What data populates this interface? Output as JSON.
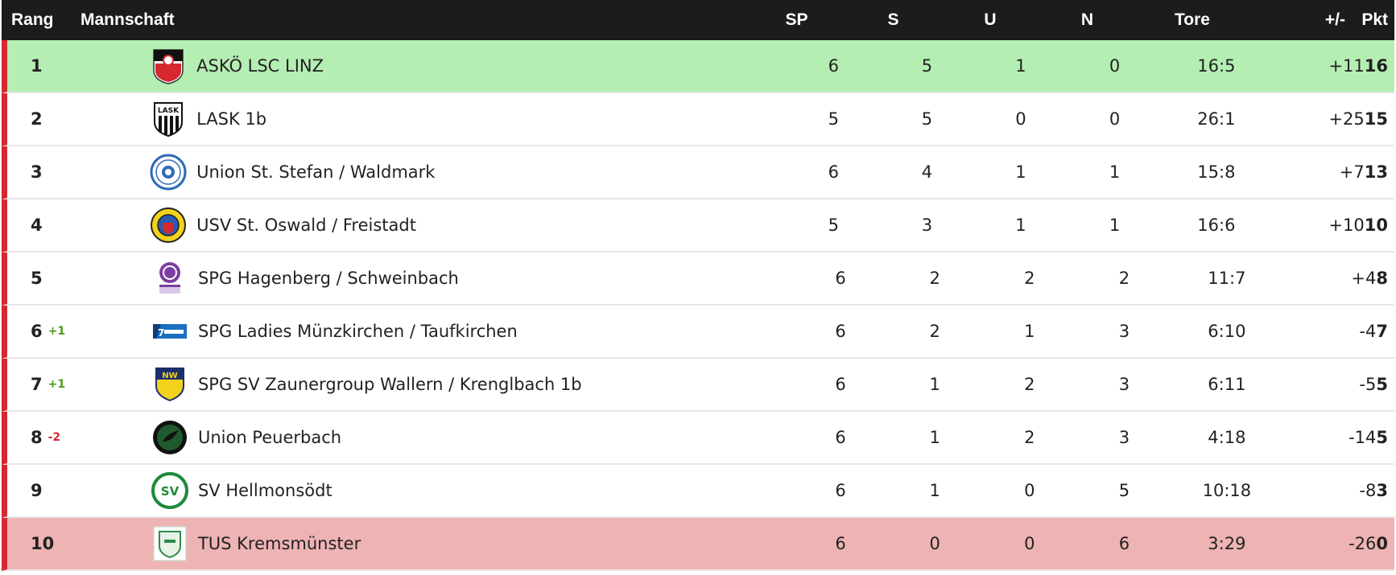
{
  "header": {
    "rank": "Rang",
    "team": "Mannschaft",
    "sp": "SP",
    "s": "S",
    "u": "U",
    "n": "N",
    "tore": "Tore",
    "diff": "+/-",
    "pkt": "Pkt"
  },
  "colors": {
    "header_bg": "#1c1c1c",
    "promotion_row": "#b5eeb3",
    "relegation_row": "#eeb3b3",
    "left_accent": "#d6282f",
    "change_up": "#4c9a1a",
    "change_down": "#d6282f"
  },
  "rows": [
    {
      "rank": "1",
      "change": "",
      "team": "ASKÖ LSC LINZ",
      "logo": "asko-lsc-linz-logo",
      "sp": "6",
      "s": "5",
      "u": "1",
      "n": "0",
      "tore": "16:5",
      "diff": "+11",
      "pkt": "16"
    },
    {
      "rank": "2",
      "change": "",
      "team": "LASK 1b",
      "logo": "lask-logo",
      "sp": "5",
      "s": "5",
      "u": "0",
      "n": "0",
      "tore": "26:1",
      "diff": "+25",
      "pkt": "15"
    },
    {
      "rank": "3",
      "change": "",
      "team": "Union St. Stefan / Waldmark",
      "logo": "union-st-stefan-logo",
      "sp": "6",
      "s": "4",
      "u": "1",
      "n": "1",
      "tore": "15:8",
      "diff": "+7",
      "pkt": "13"
    },
    {
      "rank": "4",
      "change": "",
      "team": "USV St. Oswald / Freistadt",
      "logo": "usv-st-oswald-logo",
      "sp": "5",
      "s": "3",
      "u": "1",
      "n": "1",
      "tore": "16:6",
      "diff": "+10",
      "pkt": "10"
    },
    {
      "rank": "5",
      "change": "",
      "team": "SPG Hagenberg / Schweinbach",
      "logo": "spg-hagenberg-logo",
      "sp": "6",
      "s": "2",
      "u": "2",
      "n": "2",
      "tore": "11:7",
      "diff": "+4",
      "pkt": "8"
    },
    {
      "rank": "6",
      "change": "+1",
      "team": "SPG Ladies Münzkirchen / Taufkirchen",
      "logo": "spg-ladies-muenzkirchen-logo",
      "sp": "6",
      "s": "2",
      "u": "1",
      "n": "3",
      "tore": "6:10",
      "diff": "-4",
      "pkt": "7"
    },
    {
      "rank": "7",
      "change": "+1",
      "team": "SPG SV Zaunergroup Wallern / Krenglbach 1b",
      "logo": "spg-sv-wallern-logo",
      "sp": "6",
      "s": "1",
      "u": "2",
      "n": "3",
      "tore": "6:11",
      "diff": "-5",
      "pkt": "5"
    },
    {
      "rank": "8",
      "change": "-2",
      "team": "Union Peuerbach",
      "logo": "union-peuerbach-logo",
      "sp": "6",
      "s": "1",
      "u": "2",
      "n": "3",
      "tore": "4:18",
      "diff": "-14",
      "pkt": "5"
    },
    {
      "rank": "9",
      "change": "",
      "team": "SV Hellmonsödt",
      "logo": "sv-hellmonsoedt-logo",
      "sp": "6",
      "s": "1",
      "u": "0",
      "n": "5",
      "tore": "10:18",
      "diff": "-8",
      "pkt": "3"
    },
    {
      "rank": "10",
      "change": "",
      "team": "TUS Kremsmünster",
      "logo": "tus-kremsmuenster-logo",
      "sp": "6",
      "s": "0",
      "u": "0",
      "n": "6",
      "tore": "3:29",
      "diff": "-26",
      "pkt": "0"
    }
  ]
}
